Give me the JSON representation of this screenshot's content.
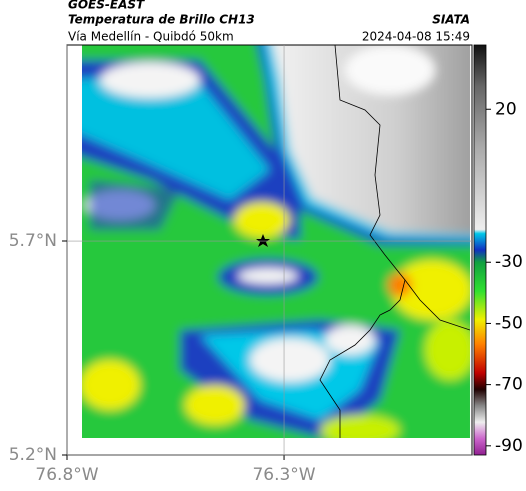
{
  "header": {
    "source": "GOES-EAST",
    "title": "Temperatura de Brillo CH13",
    "org": "SIATA",
    "subtitle": "Vía Medellín - Quibdó 50km",
    "datetime": "2024-04-08 15:49"
  },
  "map": {
    "xlim": [
      -76.8,
      -75.867
    ],
    "ylim": [
      5.2,
      6.158
    ],
    "xticks": [
      {
        "value": -76.8,
        "label": "76.8°W"
      },
      {
        "value": -76.3,
        "label": "76.3°W"
      }
    ],
    "yticks": [
      {
        "value": 5.7,
        "label": "5.7°N"
      },
      {
        "value": 5.2,
        "label": "5.2°N"
      }
    ]
  },
  "colorbar": {
    "lim": [
      -93,
      41
    ],
    "ticks": [
      20,
      -30,
      -50,
      -70,
      -90
    ]
  }
}
